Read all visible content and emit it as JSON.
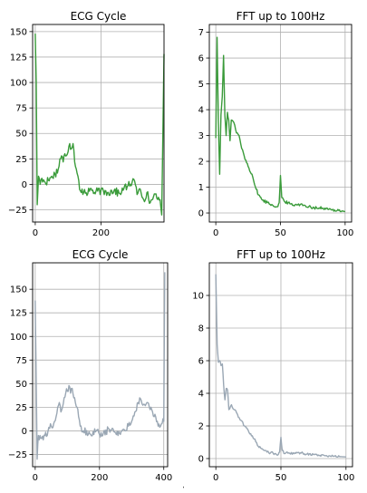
{
  "chart_data": [
    {
      "type": "line",
      "title": "ECG Cycle",
      "xlabel": "",
      "ylabel": "",
      "color": "#3a9b3a",
      "xlim": [
        -8,
        392
      ],
      "ylim": [
        -37,
        157
      ],
      "xticks": [
        0,
        200
      ],
      "xtick_labels": [
        "0",
        "200"
      ],
      "yticks": [
        -25,
        0,
        25,
        50,
        75,
        100,
        125,
        150
      ],
      "ytick_labels": [
        "−25",
        "0",
        "25",
        "50",
        "75",
        "100",
        "125",
        "150"
      ],
      "grid": true,
      "series": [
        {
          "keypoints": [
            [
              0,
              148
            ],
            [
              3,
              100
            ],
            [
              6,
              -20
            ],
            [
              10,
              8
            ],
            [
              15,
              0
            ],
            [
              20,
              6
            ],
            [
              30,
              2
            ],
            [
              40,
              4
            ],
            [
              50,
              8
            ],
            [
              60,
              10
            ],
            [
              70,
              15
            ],
            [
              75,
              25
            ],
            [
              80,
              28
            ],
            [
              85,
              22
            ],
            [
              90,
              30
            ],
            [
              100,
              32
            ],
            [
              105,
              40
            ],
            [
              110,
              35
            ],
            [
              115,
              40
            ],
            [
              120,
              22
            ],
            [
              125,
              15
            ],
            [
              130,
              8
            ],
            [
              135,
              -5
            ],
            [
              140,
              -8
            ],
            [
              150,
              -5
            ],
            [
              160,
              -9
            ],
            [
              170,
              -4
            ],
            [
              180,
              -8
            ],
            [
              200,
              -6
            ],
            [
              220,
              -8
            ],
            [
              240,
              -6
            ],
            [
              260,
              -10
            ],
            [
              270,
              -4
            ],
            [
              280,
              -2
            ],
            [
              290,
              0
            ],
            [
              300,
              5
            ],
            [
              310,
              -10
            ],
            [
              320,
              -5
            ],
            [
              330,
              -15
            ],
            [
              340,
              -8
            ],
            [
              350,
              -18
            ],
            [
              360,
              -12
            ],
            [
              380,
              -15
            ],
            [
              385,
              -30
            ],
            [
              392,
              128
            ]
          ],
          "noise": 4
        }
      ]
    },
    {
      "type": "line",
      "title": "FFT up to 100Hz",
      "xlabel": "",
      "ylabel": "",
      "color": "#3a9b3a",
      "xlim": [
        -5,
        105
      ],
      "ylim": [
        -0.35,
        7.3
      ],
      "xticks": [
        0,
        50,
        100
      ],
      "xtick_labels": [
        "0",
        "50",
        "100"
      ],
      "yticks": [
        0,
        1,
        2,
        3,
        4,
        5,
        6,
        7
      ],
      "ytick_labels": [
        "0",
        "1",
        "2",
        "3",
        "4",
        "5",
        "6",
        "7"
      ],
      "grid": true,
      "series": [
        {
          "keypoints": [
            [
              0,
              2.9
            ],
            [
              1,
              6.8
            ],
            [
              2,
              3.5
            ],
            [
              3,
              1.5
            ],
            [
              4,
              3.8
            ],
            [
              5,
              4.5
            ],
            [
              6,
              6.1
            ],
            [
              7,
              3.8
            ],
            [
              8,
              3.0
            ],
            [
              9,
              3.9
            ],
            [
              10,
              3.6
            ],
            [
              11,
              2.8
            ],
            [
              12,
              3.6
            ],
            [
              14,
              3.5
            ],
            [
              16,
              3.1
            ],
            [
              18,
              3.0
            ],
            [
              20,
              2.5
            ],
            [
              22,
              2.2
            ],
            [
              25,
              1.8
            ],
            [
              28,
              1.5
            ],
            [
              30,
              1.1
            ],
            [
              33,
              0.7
            ],
            [
              36,
              0.5
            ],
            [
              40,
              0.4
            ],
            [
              44,
              0.3
            ],
            [
              48,
              0.25
            ],
            [
              49,
              0.4
            ],
            [
              50,
              1.45
            ],
            [
              51,
              0.6
            ],
            [
              53,
              0.45
            ],
            [
              56,
              0.4
            ],
            [
              60,
              0.3
            ],
            [
              64,
              0.35
            ],
            [
              68,
              0.3
            ],
            [
              72,
              0.25
            ],
            [
              76,
              0.2
            ],
            [
              80,
              0.2
            ],
            [
              85,
              0.15
            ],
            [
              90,
              0.12
            ],
            [
              95,
              0.1
            ],
            [
              98,
              0.08
            ],
            [
              100,
              0.05
            ]
          ],
          "noise": 0.06
        }
      ]
    },
    {
      "type": "line",
      "title": "ECG Cycle",
      "xlabel": "",
      "ylabel": "",
      "color": "#9aa7b4",
      "xlim": [
        -8,
        412
      ],
      "ylim": [
        -38,
        178
      ],
      "xticks": [
        0,
        200,
        400
      ],
      "xtick_labels": [
        "0",
        "200",
        "400"
      ],
      "yticks": [
        -25,
        0,
        25,
        50,
        75,
        100,
        125,
        150
      ],
      "ytick_labels": [
        "−25",
        "0",
        "25",
        "50",
        "75",
        "100",
        "125",
        "150"
      ],
      "grid": true,
      "series": [
        {
          "keypoints": [
            [
              0,
              138
            ],
            [
              3,
              60
            ],
            [
              6,
              -30
            ],
            [
              10,
              -5
            ],
            [
              20,
              -8
            ],
            [
              30,
              -5
            ],
            [
              40,
              0
            ],
            [
              50,
              5
            ],
            [
              60,
              10
            ],
            [
              65,
              15
            ],
            [
              70,
              25
            ],
            [
              75,
              30
            ],
            [
              80,
              20
            ],
            [
              85,
              25
            ],
            [
              90,
              35
            ],
            [
              95,
              40
            ],
            [
              100,
              42
            ],
            [
              105,
              48
            ],
            [
              110,
              40
            ],
            [
              115,
              45
            ],
            [
              120,
              35
            ],
            [
              125,
              30
            ],
            [
              130,
              25
            ],
            [
              135,
              15
            ],
            [
              140,
              5
            ],
            [
              150,
              0
            ],
            [
              170,
              -3
            ],
            [
              190,
              0
            ],
            [
              210,
              -5
            ],
            [
              230,
              2
            ],
            [
              250,
              -2
            ],
            [
              270,
              0
            ],
            [
              280,
              0
            ],
            [
              290,
              5
            ],
            [
              300,
              10
            ],
            [
              310,
              20
            ],
            [
              320,
              30
            ],
            [
              325,
              35
            ],
            [
              330,
              32
            ],
            [
              340,
              28
            ],
            [
              350,
              30
            ],
            [
              360,
              25
            ],
            [
              370,
              15
            ],
            [
              380,
              10
            ],
            [
              390,
              5
            ],
            [
              395,
              8
            ],
            [
              400,
              10
            ],
            [
              403,
              168
            ]
          ],
          "noise": 4
        }
      ]
    },
    {
      "type": "line",
      "title": "FFT up to 100Hz",
      "xlabel": "",
      "ylabel": "",
      "color": "#9aa7b4",
      "xlim": [
        -5,
        105
      ],
      "ylim": [
        -0.5,
        12.0
      ],
      "xticks": [
        0,
        50,
        100
      ],
      "xtick_labels": [
        "0",
        "50",
        "100"
      ],
      "yticks": [
        0,
        2,
        4,
        6,
        8,
        10
      ],
      "ytick_labels": [
        "0",
        "2",
        "4",
        "6",
        "8",
        "10"
      ],
      "grid": true,
      "series": [
        {
          "keypoints": [
            [
              0,
              11.3
            ],
            [
              1,
              7.0
            ],
            [
              2,
              5.9
            ],
            [
              3,
              6.0
            ],
            [
              4,
              5.7
            ],
            [
              5,
              5.8
            ],
            [
              6,
              4.5
            ],
            [
              7,
              3.6
            ],
            [
              8,
              4.3
            ],
            [
              9,
              4.2
            ],
            [
              10,
              3.0
            ],
            [
              12,
              3.3
            ],
            [
              14,
              3.0
            ],
            [
              16,
              2.8
            ],
            [
              18,
              2.5
            ],
            [
              20,
              2.3
            ],
            [
              22,
              2.0
            ],
            [
              25,
              1.7
            ],
            [
              28,
              1.4
            ],
            [
              30,
              1.2
            ],
            [
              32,
              0.8
            ],
            [
              35,
              0.6
            ],
            [
              38,
              0.5
            ],
            [
              42,
              0.35
            ],
            [
              46,
              0.3
            ],
            [
              48,
              0.25
            ],
            [
              49,
              0.4
            ],
            [
              50,
              1.3
            ],
            [
              51,
              0.5
            ],
            [
              53,
              0.3
            ],
            [
              56,
              0.35
            ],
            [
              60,
              0.3
            ],
            [
              65,
              0.35
            ],
            [
              70,
              0.28
            ],
            [
              75,
              0.25
            ],
            [
              80,
              0.2
            ],
            [
              85,
              0.18
            ],
            [
              90,
              0.15
            ],
            [
              95,
              0.12
            ],
            [
              100,
              0.1
            ]
          ],
          "noise": 0.08
        }
      ]
    }
  ],
  "caption_fragment": "ʼ"
}
